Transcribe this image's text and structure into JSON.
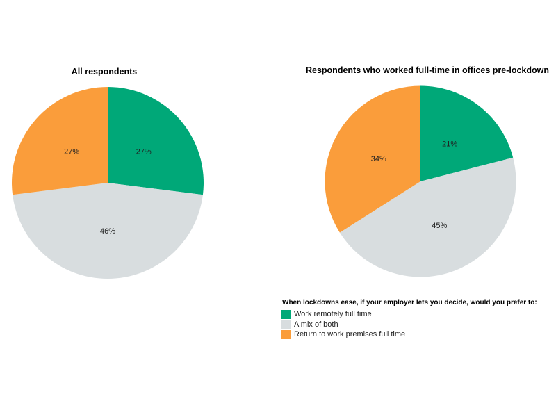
{
  "figure": {
    "background": "#ffffff"
  },
  "chart_data": [
    {
      "type": "pie",
      "title": "All respondents",
      "categories": [
        "Work remotely full time",
        "A mix of both",
        "Return to work premises full time"
      ],
      "values": [
        27,
        46,
        27
      ],
      "labels": [
        "27%",
        "46%",
        "27%"
      ],
      "unit": "%",
      "colors": [
        "#00A878",
        "#D8DDDF",
        "#FA9D3B"
      ],
      "start_angle_deg": 0,
      "direction": "clockwise",
      "label_position": "inside at half radius"
    },
    {
      "type": "pie",
      "title": "Respondents who worked full-time in offices pre-lockdown",
      "categories": [
        "Work remotely full time",
        "A mix of both",
        "Return to work premises full time"
      ],
      "values": [
        21,
        45,
        34
      ],
      "labels": [
        "21%",
        "45%",
        "34%"
      ],
      "unit": "%",
      "colors": [
        "#00A878",
        "#D8DDDF",
        "#FA9D3B"
      ],
      "start_angle_deg": 0,
      "direction": "clockwise",
      "label_position": "inside at half radius"
    }
  ],
  "legend": {
    "title": "When lockdowns ease, if your employer lets you decide, would you prefer to:",
    "position": "bottom-right",
    "items": [
      {
        "label": "Work remotely full time",
        "color": "#00A878"
      },
      {
        "label": "A mix of both",
        "color": "#D8DDDF"
      },
      {
        "label": "Return to work premises full time",
        "color": "#FA9D3B"
      }
    ]
  }
}
